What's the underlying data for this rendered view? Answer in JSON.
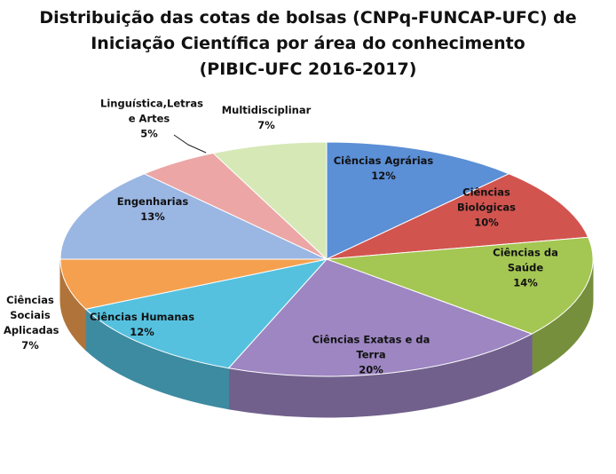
{
  "chart_data": {
    "type": "pie3d",
    "title": "Distribuição das cotas de bolsas (CNPq-FUNCAP-UFC) de Iniciação Científica por área do conhecimento",
    "subtitle": "(PIBIC-UFC 2016-2017)",
    "categories": [
      "Ciências Agrárias",
      "Ciências Biológicas",
      "Ciências da Saúde",
      "Ciências Exatas e da Terra",
      "Ciências Humanas",
      "Ciências Sociais Aplicadas",
      "Engenharias",
      "Linguística,Letras e Artes",
      "Multidisciplinar"
    ],
    "values": [
      12,
      10,
      14,
      20,
      12,
      7,
      13,
      5,
      7
    ],
    "value_labels": [
      "12%",
      "10%",
      "14%",
      "20%",
      "12%",
      "7%",
      "13%",
      "5%",
      "7%"
    ],
    "colors": [
      "#5b8fd6",
      "#d2544f",
      "#a4c653",
      "#9d86c2",
      "#55c1df",
      "#f5a04f",
      "#9ab6e3",
      "#eba6a5",
      "#d6e8b6"
    ]
  }
}
